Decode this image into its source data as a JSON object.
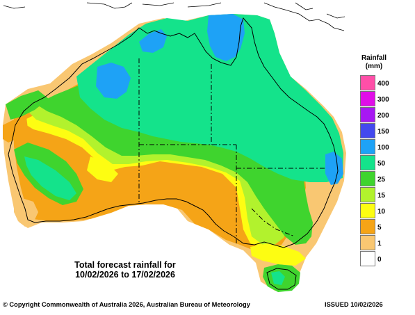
{
  "map": {
    "caption_line1": "Total forecast rainfall for",
    "caption_line2": "10/02/2026 to 17/02/2026"
  },
  "legend": {
    "title_line1": "Rainfall",
    "title_line2": "(mm)",
    "items": [
      {
        "label": "400",
        "color": "#ff4fa8"
      },
      {
        "label": "300",
        "color": "#e00ee8"
      },
      {
        "label": "200",
        "color": "#a718f2"
      },
      {
        "label": "150",
        "color": "#4449ee"
      },
      {
        "label": "100",
        "color": "#1ea2f6"
      },
      {
        "label": "50",
        "color": "#14e38b"
      },
      {
        "label": "25",
        "color": "#3fd42e"
      },
      {
        "label": "15",
        "color": "#b2f22d"
      },
      {
        "label": "10",
        "color": "#fdfd12"
      },
      {
        "label": "5",
        "color": "#f5a417"
      },
      {
        "label": "1",
        "color": "#f9c772"
      },
      {
        "label": "0",
        "color": "#ffffff"
      }
    ]
  },
  "footer": {
    "copyright": "© Copyright Commonwealth of Australia 2026, Australian Bureau of Meteorology",
    "issued": "ISSUED 10/02/2026"
  }
}
